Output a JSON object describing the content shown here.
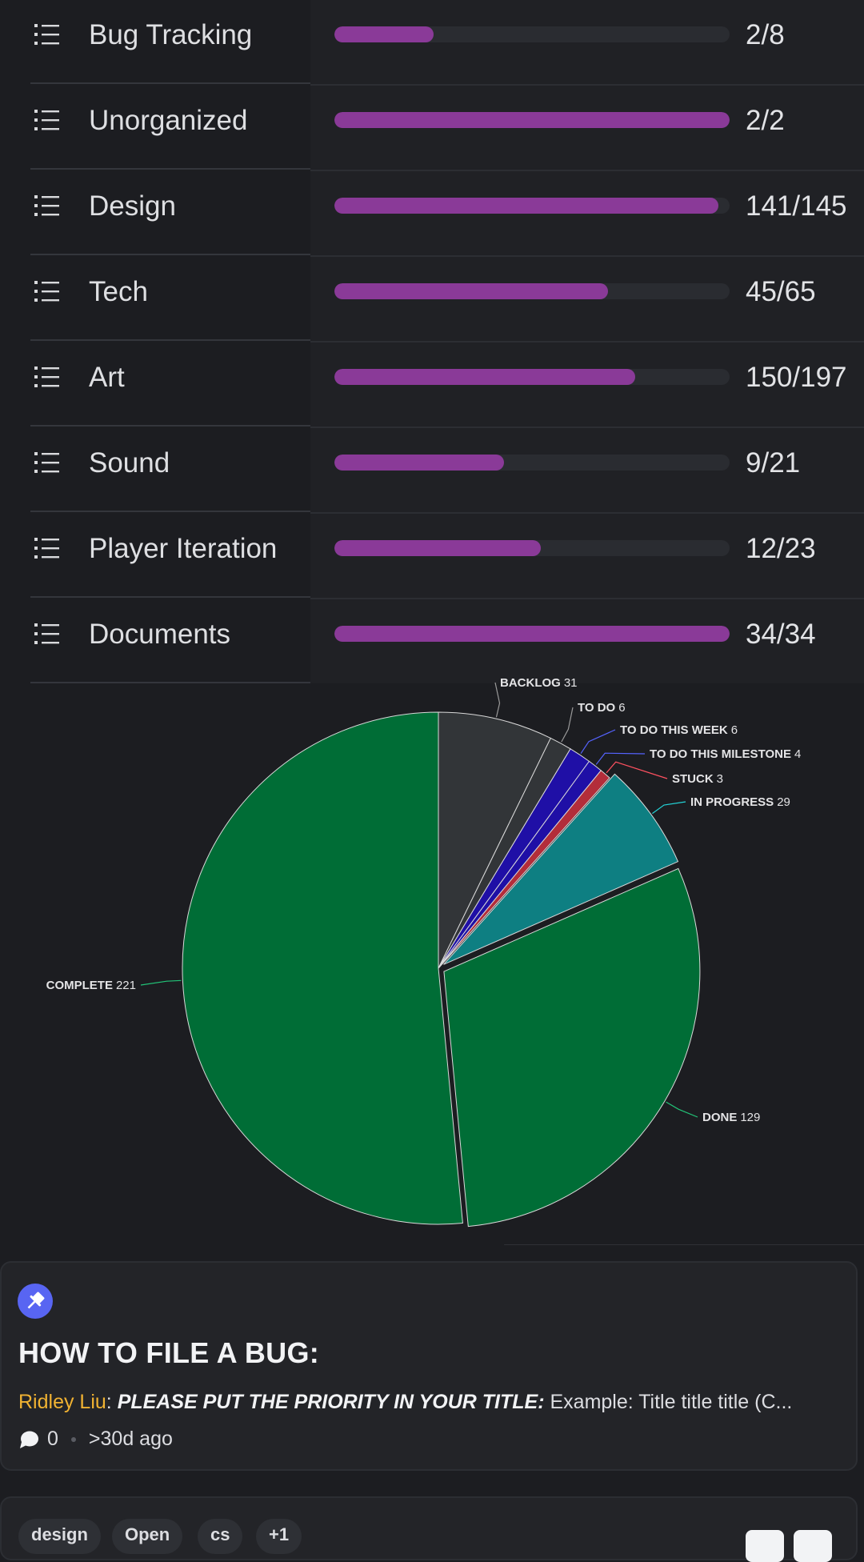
{
  "progress_rows": [
    {
      "label": "Bug Tracking",
      "done": 2,
      "total": 8,
      "count_text": "2/8"
    },
    {
      "label": "Unorganized",
      "done": 2,
      "total": 2,
      "count_text": "2/2"
    },
    {
      "label": "Design",
      "done": 141,
      "total": 145,
      "count_text": "141/145"
    },
    {
      "label": "Tech",
      "done": 45,
      "total": 65,
      "count_text": "45/65"
    },
    {
      "label": "Art",
      "done": 150,
      "total": 197,
      "count_text": "150/197"
    },
    {
      "label": "Sound",
      "done": 9,
      "total": 21,
      "count_text": "9/21"
    },
    {
      "label": "Player Iteration",
      "done": 12,
      "total": 23,
      "count_text": "12/23"
    },
    {
      "label": "Documents",
      "done": 34,
      "total": 34,
      "count_text": "34/34"
    }
  ],
  "row_icon": "list-icon",
  "colors": {
    "progress_fill": "#8a3a98",
    "progress_track": "#2a2c31",
    "accent": "#5865f2",
    "author": "#f0b232"
  },
  "chart_data": {
    "type": "pie",
    "slices": [
      {
        "name": "BACKLOG",
        "value": 31,
        "color": "#323538",
        "line": "#9a9a9a"
      },
      {
        "name": "TO DO",
        "value": 6,
        "color": "#323538",
        "line": "#9a9a9a"
      },
      {
        "name": "TO DO THIS WEEK",
        "value": 6,
        "color": "#1f0fa6",
        "line": "#5563ff"
      },
      {
        "name": "TO DO THIS MILESTONE",
        "value": 4,
        "color": "#1f0fa6",
        "line": "#5563ff"
      },
      {
        "name": "STUCK",
        "value": 3,
        "color": "#b32d3a",
        "line": "#ff5160"
      },
      {
        "name": "IN PROGRESS",
        "value": 29,
        "color": "#0e7f82",
        "line": "#23d2d6"
      },
      {
        "name": "DONE",
        "value": 129,
        "color": "#006d36",
        "line": "#22c478"
      },
      {
        "name": "COMPLETE",
        "value": 221,
        "color": "#006d36",
        "line": "#22c478"
      }
    ],
    "legend": "none",
    "grid": false
  },
  "pinned_post": {
    "icon": "pin-icon",
    "title": "HOW TO FILE A BUG:",
    "author": "Ridley Liu",
    "separator": ": ",
    "emphasis": "PLEASE PUT THE PRIORITY IN YOUR TITLE:",
    "preview": " Example: Title title title (C...",
    "comment_icon": "chat-bubble-icon",
    "comments": "0",
    "age": ">30d ago"
  },
  "next_post": {
    "tags": [
      "design",
      "Open",
      "cs",
      "+1"
    ]
  }
}
